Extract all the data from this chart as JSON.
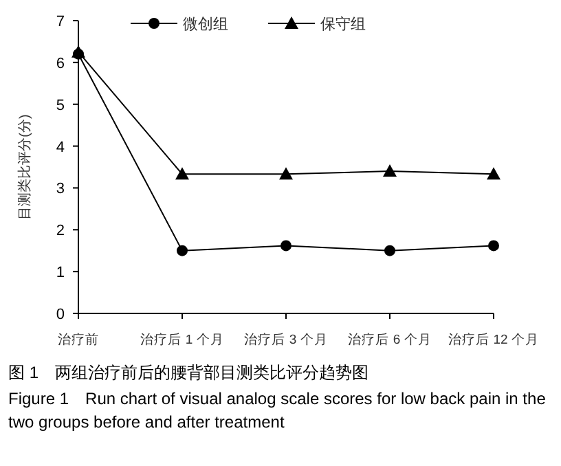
{
  "chart_data": {
    "type": "line",
    "title": "图 1　两组治疗前后的腰背部目测类比评分趋势图",
    "subtitle": "Figure 1　Run chart of visual analog scale scores for low back pain in the two groups before and after treatment",
    "ylabel": "目测类比评分(分)",
    "categories": [
      "治疗前",
      "治疗后 1 个月",
      "治疗后 3 个月",
      "治疗后 6 个月",
      "治疗后 12 个月"
    ],
    "series": [
      {
        "name": "微创组",
        "color": "#000000",
        "marker": "circle",
        "values": [
          6.2,
          1.5,
          1.62,
          1.5,
          1.62
        ]
      },
      {
        "name": "保守组",
        "color": "#000000",
        "marker": "triangle",
        "values": [
          6.25,
          3.33,
          3.33,
          3.4,
          3.33
        ]
      }
    ],
    "ylim": [
      0,
      7
    ],
    "yticks": [
      0,
      1,
      2,
      3,
      4,
      5,
      6,
      7
    ],
    "grid": false,
    "legend": "top",
    "line_style": "solid"
  }
}
